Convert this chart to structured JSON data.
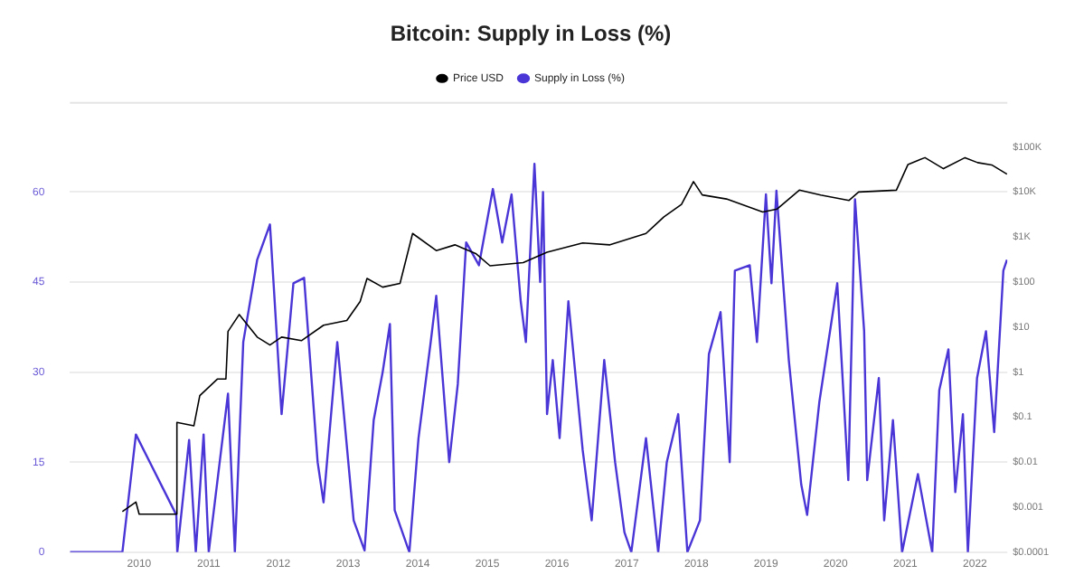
{
  "chart_data": {
    "type": "line",
    "title": "Bitcoin: Supply in Loss (%)",
    "legend": "top",
    "grid": "y",
    "line_style": "solid",
    "xlim": [
      "2009-01-03",
      "2022-06-20"
    ],
    "xticks": [
      {
        "value": "2010",
        "label": "2010"
      },
      {
        "value": "2011",
        "label": "2011"
      },
      {
        "value": "2012",
        "label": "2012"
      },
      {
        "value": "2013",
        "label": "2013"
      },
      {
        "value": "2014",
        "label": "2014"
      },
      {
        "value": "2015",
        "label": "2015"
      },
      {
        "value": "2016",
        "label": "2016"
      },
      {
        "value": "2017",
        "label": "2017"
      },
      {
        "value": "2018",
        "label": "2018"
      },
      {
        "value": "2019",
        "label": "2019"
      },
      {
        "value": "2020",
        "label": "2020"
      },
      {
        "value": "2021",
        "label": "2021"
      },
      {
        "value": "2022",
        "label": "2022"
      }
    ],
    "ylim": [
      0,
      75
    ],
    "yticks": [
      0,
      15,
      30,
      45,
      60
    ],
    "log": "y2",
    "y2lim": [
      0.0001,
      1000000
    ],
    "y2ticks": [
      {
        "value": 0.0001,
        "label": "$0.0001"
      },
      {
        "value": 0.001,
        "label": "$0.001"
      },
      {
        "value": 0.01,
        "label": "$0.01"
      },
      {
        "value": 0.1,
        "label": "$0.1"
      },
      {
        "value": 1,
        "label": "$1"
      },
      {
        "value": 10,
        "label": "$10"
      },
      {
        "value": 100,
        "label": "$100"
      },
      {
        "value": 1000,
        "label": "$1K"
      },
      {
        "value": 10000,
        "label": "$10K"
      },
      {
        "value": 100000,
        "label": "$100K"
      }
    ],
    "series": [
      {
        "name": "Price USD",
        "color": "#000000",
        "axis": "y2",
        "x": [
          "2009-10-05",
          "2009-12-15",
          "2010-01-01",
          "2010-07-15",
          "2010-07-18",
          "2010-10-15",
          "2010-11-15",
          "2011-02-15",
          "2011-04-01",
          "2011-04-12",
          "2011-06-10",
          "2011-09-12",
          "2011-11-18",
          "2012-01-18",
          "2012-05-01",
          "2012-08-25",
          "2012-12-25",
          "2013-03-05",
          "2013-04-10",
          "2013-07-01",
          "2013-09-30",
          "2013-12-05",
          "2014-04-08",
          "2014-07-15",
          "2014-11-01",
          "2015-01-15",
          "2015-07-08",
          "2015-11-10",
          "2016-05-15",
          "2016-10-05",
          "2017-04-12",
          "2017-07-15",
          "2017-10-15",
          "2017-12-17",
          "2018-02-01",
          "2018-06-08",
          "2018-12-15",
          "2019-03-01",
          "2019-06-25",
          "2019-10-15",
          "2020-03-12",
          "2020-05-01",
          "2020-11-15",
          "2021-01-15",
          "2021-04-14",
          "2021-07-20",
          "2021-11-10",
          "2022-01-15",
          "2022-03-30",
          "2022-06-18"
        ],
        "values": [
          0.0008,
          0.0013,
          0.0007,
          0.0007,
          0.076,
          0.064,
          0.3,
          0.7,
          0.7,
          8,
          19,
          6,
          4,
          6,
          5,
          11,
          14,
          37,
          120,
          77,
          93,
          1200,
          500,
          670,
          430,
          230,
          270,
          460,
          740,
          670,
          1200,
          2800,
          5300,
          17000,
          8600,
          7000,
          3600,
          4200,
          11000,
          8600,
          6500,
          10000,
          11000,
          41000,
          58000,
          33000,
          58000,
          45000,
          40000,
          25000
        ]
      },
      {
        "name": "Supply in Loss (%)",
        "color": "#4a35d6",
        "x": [
          "2009-01-03",
          "2009-10-05",
          "2009-12-15",
          "2010-07-15",
          "2010-07-20",
          "2010-09-20",
          "2010-10-25",
          "2010-12-05",
          "2011-01-01",
          "2011-04-12",
          "2011-05-18",
          "2011-07-01",
          "2011-09-12",
          "2011-11-18",
          "2012-01-18",
          "2012-03-20",
          "2012-05-15",
          "2012-07-25",
          "2012-08-25",
          "2012-11-05",
          "2013-01-30",
          "2013-03-28",
          "2013-05-15",
          "2013-07-01",
          "2013-08-08",
          "2013-09-02",
          "2013-11-18",
          "2014-01-05",
          "2014-03-10",
          "2014-04-08",
          "2014-06-15",
          "2014-07-30",
          "2014-09-12",
          "2014-11-18",
          "2015-01-30",
          "2015-03-20",
          "2015-05-08",
          "2015-06-25",
          "2015-07-22",
          "2015-09-05",
          "2015-10-05",
          "2015-10-20",
          "2015-11-10",
          "2015-12-10",
          "2016-01-15",
          "2016-03-01",
          "2016-05-15",
          "2016-07-01",
          "2016-09-05",
          "2016-11-01",
          "2016-12-20",
          "2017-01-25",
          "2017-04-12",
          "2017-06-15",
          "2017-07-30",
          "2017-09-28",
          "2017-11-15",
          "2018-01-20",
          "2018-03-08",
          "2018-05-08",
          "2018-06-25",
          "2018-07-22",
          "2018-10-08",
          "2018-11-15",
          "2019-01-01",
          "2019-01-30",
          "2019-02-25",
          "2019-05-01",
          "2019-07-05",
          "2019-08-05",
          "2019-10-08",
          "2020-01-10",
          "2020-03-08",
          "2020-04-12",
          "2020-05-30",
          "2020-06-15",
          "2020-08-15",
          "2020-09-12",
          "2020-10-28",
          "2020-12-15",
          "2021-03-08",
          "2021-05-22",
          "2021-06-28",
          "2021-08-15",
          "2021-09-20",
          "2021-10-30",
          "2021-11-25",
          "2022-01-12",
          "2022-02-28",
          "2022-04-12",
          "2022-05-30",
          "2022-06-18"
        ],
        "values": [
          0,
          0,
          19.6,
          6.2,
          0,
          18.7,
          0,
          19.6,
          0,
          26.4,
          0,
          35,
          48.7,
          54.6,
          23,
          44.8,
          45.7,
          15,
          8.3,
          35,
          5.3,
          0.3,
          22,
          30,
          38,
          7,
          0,
          19,
          35,
          42.7,
          15,
          28,
          51.6,
          47.8,
          60.5,
          51.6,
          59.6,
          41.8,
          35,
          64.7,
          45,
          60,
          23,
          32,
          19,
          41.8,
          17,
          5.3,
          32,
          15,
          3.3,
          0,
          19,
          0,
          15,
          23,
          0,
          5.3,
          33,
          40,
          15,
          46.9,
          47.8,
          35,
          59.6,
          44.8,
          60.2,
          32,
          11.3,
          6.2,
          25,
          44.8,
          12,
          58.8,
          36.8,
          12,
          29,
          5.3,
          22,
          0,
          13,
          0,
          27,
          33.8,
          10,
          23,
          0,
          29,
          36.8,
          20,
          46.9,
          48.7
        ]
      }
    ]
  }
}
